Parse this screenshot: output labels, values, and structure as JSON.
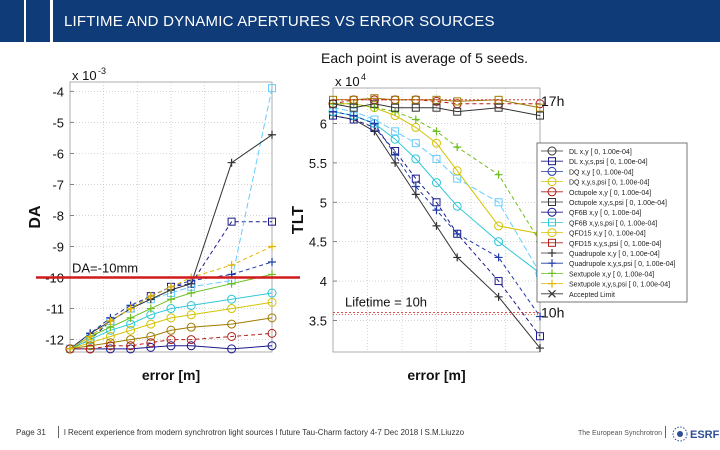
{
  "slide": {
    "title": "LIFTIME AND DYNAMIC APERTURES VS ERROR SOURCES",
    "note": "Each point is average of 5 seeds.",
    "footer_page": "Page 31",
    "footer_text": "l Recent experience from modern synchrotron light sources l future Tau-Charm factory 4-7 Dec 2018 l S.M.Liuzzo",
    "footer_brand": "The European Synchrotron",
    "footer_logo_text": "ESRF"
  },
  "chart_data": [
    {
      "type": "line",
      "xlabel": "error [m]",
      "ylabel": "DA",
      "yscale_label": "x 10",
      "yscale_exp": "-3",
      "ylim": [
        -12.4,
        -3.7
      ],
      "yticks": [
        -4,
        -5,
        -6,
        -7,
        -8,
        -9,
        -10,
        -11,
        -12
      ],
      "xlim": [
        0,
        0.0001
      ],
      "annotations": [
        {
          "text": "DA=-10mm",
          "y": -10
        }
      ],
      "series": [
        {
          "color": "#1a1a8c",
          "marker": "circle",
          "dash": "",
          "x": [
            0,
            1e-05,
            2e-05,
            3e-05,
            4e-05,
            5e-05,
            6e-05,
            8e-05,
            0.0001
          ],
          "y": [
            -12.3,
            -12.3,
            -12.3,
            -12.3,
            -12.25,
            -12.2,
            -12.2,
            -12.3,
            -12.2
          ]
        },
        {
          "color": "#1a1a8c",
          "marker": "square",
          "dash": "4 3",
          "x": [
            0,
            1e-05,
            2e-05,
            3e-05,
            4e-05,
            5e-05,
            6e-05,
            8e-05,
            0.0001
          ],
          "y": [
            -12.3,
            -12.0,
            -11.4,
            -11.0,
            -10.6,
            -10.3,
            -10.2,
            -8.2,
            -8.2
          ]
        },
        {
          "color": "#2ec7d8",
          "marker": "circle",
          "dash": "",
          "x": [
            0,
            1e-05,
            2e-05,
            3e-05,
            4e-05,
            5e-05,
            6e-05,
            8e-05,
            0.0001
          ],
          "y": [
            -12.3,
            -12.0,
            -11.7,
            -11.5,
            -11.2,
            -11.0,
            -10.9,
            -10.7,
            -10.5
          ]
        },
        {
          "color": "#66ccff",
          "marker": "square",
          "dash": "6 3",
          "x": [
            0,
            1e-05,
            2e-05,
            3e-05,
            4e-05,
            5e-05,
            6e-05,
            8e-05,
            0.0001
          ],
          "y": [
            -12.3,
            -11.9,
            -11.4,
            -11.0,
            -10.7,
            -10.5,
            -10.3,
            -10.1,
            -3.9
          ]
        },
        {
          "color": "#d4c300",
          "marker": "circle",
          "dash": "",
          "x": [
            0,
            1e-05,
            2e-05,
            3e-05,
            4e-05,
            5e-05,
            6e-05,
            8e-05,
            0.0001
          ],
          "y": [
            -12.3,
            -12.1,
            -11.9,
            -11.7,
            -11.5,
            -11.3,
            -11.2,
            -11.0,
            -10.8
          ]
        },
        {
          "color": "#a07a00",
          "marker": "circle",
          "dash": "",
          "x": [
            0,
            1e-05,
            2e-05,
            3e-05,
            4e-05,
            5e-05,
            6e-05,
            8e-05,
            0.0001
          ],
          "y": [
            -12.3,
            -12.2,
            -12.1,
            -12.0,
            -11.9,
            -11.7,
            -11.6,
            -11.5,
            -11.3
          ]
        },
        {
          "color": "#b0201a",
          "marker": "circle",
          "dash": "4 3",
          "x": [
            0,
            1e-05,
            2e-05,
            3e-05,
            4e-05,
            5e-05,
            6e-05,
            8e-05,
            0.0001
          ],
          "y": [
            -12.3,
            -12.3,
            -12.2,
            -12.2,
            -12.1,
            -12.0,
            -12.0,
            -11.9,
            -11.8
          ]
        },
        {
          "color": "#333333",
          "marker": "plus",
          "dash": "",
          "x": [
            0,
            1e-05,
            2e-05,
            3e-05,
            4e-05,
            5e-05,
            6e-05,
            8e-05,
            0.0001
          ],
          "y": [
            -12.3,
            -11.8,
            -11.4,
            -11.0,
            -10.7,
            -10.4,
            -10.2,
            -6.3,
            -5.4
          ]
        },
        {
          "color": "#1f3aa8",
          "marker": "plus",
          "dash": "4 3",
          "x": [
            0,
            1e-05,
            2e-05,
            3e-05,
            4e-05,
            5e-05,
            6e-05,
            8e-05,
            0.0001
          ],
          "y": [
            -12.3,
            -11.8,
            -11.3,
            -10.9,
            -10.6,
            -10.3,
            -10.1,
            -9.9,
            -9.5
          ]
        },
        {
          "color": "#6bbf1e",
          "marker": "plus",
          "dash": "",
          "x": [
            0,
            1e-05,
            2e-05,
            3e-05,
            4e-05,
            5e-05,
            6e-05,
            8e-05,
            0.0001
          ],
          "y": [
            -12.3,
            -11.9,
            -11.6,
            -11.3,
            -11.0,
            -10.7,
            -10.5,
            -10.2,
            -9.9
          ]
        },
        {
          "color": "#e3b400",
          "marker": "plus",
          "dash": "4 3",
          "x": [
            0,
            1e-05,
            2e-05,
            3e-05,
            4e-05,
            5e-05,
            6e-05,
            8e-05,
            0.0001
          ],
          "y": [
            -12.3,
            -11.9,
            -11.4,
            -11.0,
            -10.6,
            -10.3,
            -10.0,
            -9.6,
            -9.0
          ]
        }
      ]
    },
    {
      "type": "line",
      "xlabel": "error [m]",
      "ylabel": "TLT",
      "yscale_label": "x 10",
      "yscale_exp": "4",
      "ylim": [
        3.1,
        6.45
      ],
      "yticks": [
        6,
        5.5,
        5,
        4.5,
        4,
        3.5
      ],
      "xlim": [
        0,
        0.0001
      ],
      "annotations": [
        {
          "text": "17h",
          "y": 6.3
        },
        {
          "text": "Lifetime = 10h",
          "y": 3.6
        },
        {
          "text": "10h",
          "y": 3.6
        }
      ],
      "legend": {
        "placement": "right",
        "entries": [
          {
            "label": "DL x,y [ 0, 1.00e-04]",
            "color": "#333333",
            "marker": "circle"
          },
          {
            "label": "DL x,y,s,psi [ 0, 1.00e-04]",
            "color": "#1a1a8c",
            "marker": "square"
          },
          {
            "label": "DQ x,y [ 0, 1.00e-04]",
            "color": "#1f3aa8",
            "marker": "circle"
          },
          {
            "label": "DQ x,y,s,psi [ 0, 1.00e-04]",
            "color": "#d4c300",
            "marker": "circle"
          },
          {
            "label": "Octupole x,y [ 0, 1.00e-04]",
            "color": "#b0201a",
            "marker": "circle"
          },
          {
            "label": "Octupole x,y,s,psi [ 0, 1.00e-04]",
            "color": "#333333",
            "marker": "square"
          },
          {
            "label": "QF6B x,y [ 0, 1.00e-04]",
            "color": "#1a1a8c",
            "marker": "circle"
          },
          {
            "label": "QF6B x,y,s,psi [ 0, 1.00e-04]",
            "color": "#2ec7d8",
            "marker": "square"
          },
          {
            "label": "QFD15 x,y [ 0, 1.00e-04]",
            "color": "#d4c300",
            "marker": "circle"
          },
          {
            "label": "QFD15 x,y,s,psi [ 0, 1.00e-04]",
            "color": "#b0201a",
            "marker": "square"
          },
          {
            "label": "Quadrupole x,y [ 0, 1.00e-04]",
            "color": "#333333",
            "marker": "plus"
          },
          {
            "label": "Quadrupole x,y,s,psi [ 0, 1.00e-04]",
            "color": "#1f3aa8",
            "marker": "plus"
          },
          {
            "label": "Sextupole x,y [ 0, 1.00e-04]",
            "color": "#6bbf1e",
            "marker": "plus"
          },
          {
            "label": "Sextupole x,y,s,psi [ 0, 1.00e-04]",
            "color": "#e3b400",
            "marker": "plus"
          },
          {
            "label": "Accepted Limit",
            "color": "#333333",
            "marker": "cross"
          }
        ]
      },
      "series": [
        {
          "color": "#333333",
          "marker": "plus",
          "dash": "",
          "x": [
            0,
            1e-05,
            2e-05,
            3e-05,
            4e-05,
            5e-05,
            6e-05,
            8e-05,
            0.0001
          ],
          "y": [
            6.1,
            6.05,
            5.9,
            5.5,
            5.1,
            4.7,
            4.3,
            3.8,
            3.15
          ]
        },
        {
          "color": "#1a1a8c",
          "marker": "square",
          "dash": "4 3",
          "x": [
            0,
            1e-05,
            2e-05,
            3e-05,
            4e-05,
            5e-05,
            6e-05,
            8e-05,
            0.0001
          ],
          "y": [
            6.1,
            6.05,
            5.95,
            5.65,
            5.3,
            5.0,
            4.6,
            4.0,
            3.3
          ]
        },
        {
          "color": "#2ec7d8",
          "marker": "circle",
          "dash": "",
          "x": [
            0,
            1e-05,
            2e-05,
            3e-05,
            4e-05,
            5e-05,
            6e-05,
            8e-05,
            0.0001
          ],
          "y": [
            6.15,
            6.1,
            6.0,
            5.8,
            5.55,
            5.25,
            4.95,
            4.5,
            4.1
          ]
        },
        {
          "color": "#66ccff",
          "marker": "square",
          "dash": "6 3",
          "x": [
            0,
            1e-05,
            2e-05,
            3e-05,
            4e-05,
            5e-05,
            6e-05,
            8e-05,
            0.0001
          ],
          "y": [
            6.2,
            6.15,
            6.05,
            5.9,
            5.75,
            5.55,
            5.3,
            5.0,
            4.1
          ]
        },
        {
          "color": "#d4c300",
          "marker": "circle",
          "dash": "",
          "x": [
            0,
            1e-05,
            2e-05,
            3e-05,
            4e-05,
            5e-05,
            6e-05,
            8e-05,
            0.0001
          ],
          "y": [
            6.25,
            6.25,
            6.2,
            6.1,
            5.95,
            5.75,
            5.4,
            4.7,
            4.6
          ]
        },
        {
          "color": "#6bbf1e",
          "marker": "plus",
          "dash": "4 3",
          "x": [
            0,
            1e-05,
            2e-05,
            3e-05,
            4e-05,
            5e-05,
            6e-05,
            8e-05,
            0.0001
          ],
          "y": [
            6.25,
            6.25,
            6.2,
            6.15,
            6.05,
            5.9,
            5.7,
            5.35,
            4.5
          ]
        },
        {
          "color": "#1f3aa8",
          "marker": "plus",
          "dash": "4 3",
          "x": [
            0,
            1e-05,
            2e-05,
            3e-05,
            4e-05,
            5e-05,
            6e-05,
            8e-05,
            0.0001
          ],
          "y": [
            6.15,
            6.1,
            6.0,
            5.6,
            5.2,
            4.9,
            4.6,
            4.3,
            3.55
          ]
        },
        {
          "color": "#b0201a",
          "marker": "circle",
          "dash": "4 3",
          "x": [
            0,
            1e-05,
            2e-05,
            3e-05,
            4e-05,
            5e-05,
            6e-05,
            8e-05,
            0.0001
          ],
          "y": [
            6.25,
            6.3,
            6.3,
            6.3,
            6.3,
            6.28,
            6.25,
            6.25,
            6.25
          ]
        },
        {
          "color": "#a07a00",
          "marker": "square",
          "dash": "",
          "x": [
            0,
            1e-05,
            2e-05,
            3e-05,
            4e-05,
            5e-05,
            6e-05,
            8e-05,
            0.0001
          ],
          "y": [
            6.3,
            6.3,
            6.32,
            6.3,
            6.3,
            6.3,
            6.28,
            6.3,
            6.2
          ]
        },
        {
          "color": "#333333",
          "marker": "square",
          "dash": "",
          "x": [
            0,
            1e-05,
            2e-05,
            3e-05,
            4e-05,
            5e-05,
            6e-05,
            8e-05,
            0.0001
          ],
          "y": [
            6.25,
            6.2,
            6.25,
            6.2,
            6.2,
            6.2,
            6.15,
            6.2,
            6.1
          ]
        }
      ]
    }
  ]
}
